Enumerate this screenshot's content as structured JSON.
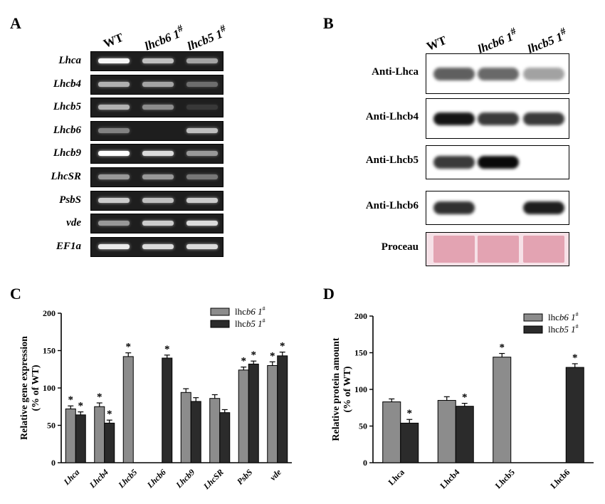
{
  "panels": {
    "a": "A",
    "b": "B",
    "c": "C",
    "d": "D"
  },
  "lanes": {
    "wt": "WT",
    "lhcb6": {
      "name": "lhcb6",
      "sup": "1",
      "hash": "#"
    },
    "lhcb5": {
      "name": "lhcb5",
      "sup": "1",
      "hash": "#"
    }
  },
  "gel_rows": [
    {
      "label": "Lhca",
      "bands": [
        0.95,
        0.75,
        0.65
      ]
    },
    {
      "label": "Lhcb4",
      "bands": [
        0.7,
        0.65,
        0.4
      ]
    },
    {
      "label": "Lhcb5",
      "bands": [
        0.7,
        0.55,
        0.05
      ]
    },
    {
      "label": "Lhcb6",
      "bands": [
        0.5,
        0.0,
        0.75
      ]
    },
    {
      "label": "Lhcb9",
      "bands": [
        1.0,
        0.85,
        0.6
      ]
    },
    {
      "label": "LhcSR",
      "bands": [
        0.6,
        0.6,
        0.45
      ]
    },
    {
      "label": "PsbS",
      "bands": [
        0.8,
        0.75,
        0.8
      ]
    },
    {
      "label": "vde",
      "bands": [
        0.6,
        0.8,
        0.85
      ]
    },
    {
      "label": "EF1a",
      "bands": [
        0.9,
        0.85,
        0.85
      ]
    }
  ],
  "blots": [
    {
      "label": "Anti-Lhca",
      "bands": [
        0.55,
        0.5,
        0.2
      ]
    },
    {
      "label": "Anti-Lhcb4",
      "bands": [
        0.95,
        0.75,
        0.75
      ]
    },
    {
      "label": "Anti-Lhcb5",
      "bands": [
        0.75,
        1.0,
        0.0
      ]
    },
    {
      "label": "Anti-Lhcb6",
      "bands": [
        0.8,
        0.0,
        0.9
      ]
    },
    {
      "label": "Proceau",
      "bands": [
        0.6,
        0.6,
        0.6
      ],
      "stain": true
    }
  ],
  "colors": {
    "series1": "#8c8c8c",
    "series2": "#2b2b2b",
    "proceau": "#e3a3b2",
    "gel_bg": "#1e1e1e"
  },
  "chart_data": [
    {
      "type": "bar",
      "panel": "C",
      "ylabel": "Relative gene expression",
      "ylabel2": "(% of WT)",
      "ylim": [
        0,
        200
      ],
      "yticks": [
        0,
        50,
        100,
        150,
        200
      ],
      "categories": [
        "Lhca",
        "Lhcb4",
        "Lhcb5",
        "Lhcb6",
        "Lhcb9",
        "LhcSR",
        "PsbS",
        "vde"
      ],
      "series": [
        {
          "name": "lhcb6 1#",
          "label_base": "lhc",
          "label_ital": "b6 1",
          "label_sup": "#",
          "values": [
            72,
            75,
            142,
            null,
            94,
            86,
            124,
            130
          ],
          "errors": [
            4,
            5,
            5,
            0,
            5,
            5,
            4,
            5
          ],
          "sig": [
            true,
            true,
            true,
            false,
            false,
            false,
            true,
            true
          ]
        },
        {
          "name": "lhcb5 1#",
          "label_base": "lhc",
          "label_ital": "b5 1",
          "label_sup": "#",
          "values": [
            64,
            53,
            null,
            140,
            82,
            67,
            132,
            143
          ],
          "errors": [
            4,
            4,
            0,
            4,
            5,
            4,
            4,
            5
          ],
          "sig": [
            true,
            true,
            false,
            true,
            false,
            false,
            true,
            true
          ]
        }
      ]
    },
    {
      "type": "bar",
      "panel": "D",
      "ylabel": "Relative protein amount",
      "ylabel2": "(% of WT)",
      "ylim": [
        0,
        200
      ],
      "yticks": [
        0,
        50,
        100,
        150,
        200
      ],
      "categories": [
        "Lhca",
        "Lhcb4",
        "Lhcb5",
        "Lhcb6"
      ],
      "series": [
        {
          "name": "lhcb6 1#",
          "label_base": "lhc",
          "label_ital": "b6 1",
          "label_sup": "#",
          "values": [
            83,
            85,
            144,
            null
          ],
          "errors": [
            4,
            5,
            5,
            0
          ],
          "sig": [
            false,
            false,
            true,
            false
          ]
        },
        {
          "name": "lhcb5 1#",
          "label_base": "lhc",
          "label_ital": "b5 1",
          "label_sup": "#",
          "values": [
            54,
            77,
            null,
            130
          ],
          "errors": [
            5,
            4,
            0,
            5
          ],
          "sig": [
            true,
            true,
            false,
            true
          ]
        }
      ]
    }
  ]
}
